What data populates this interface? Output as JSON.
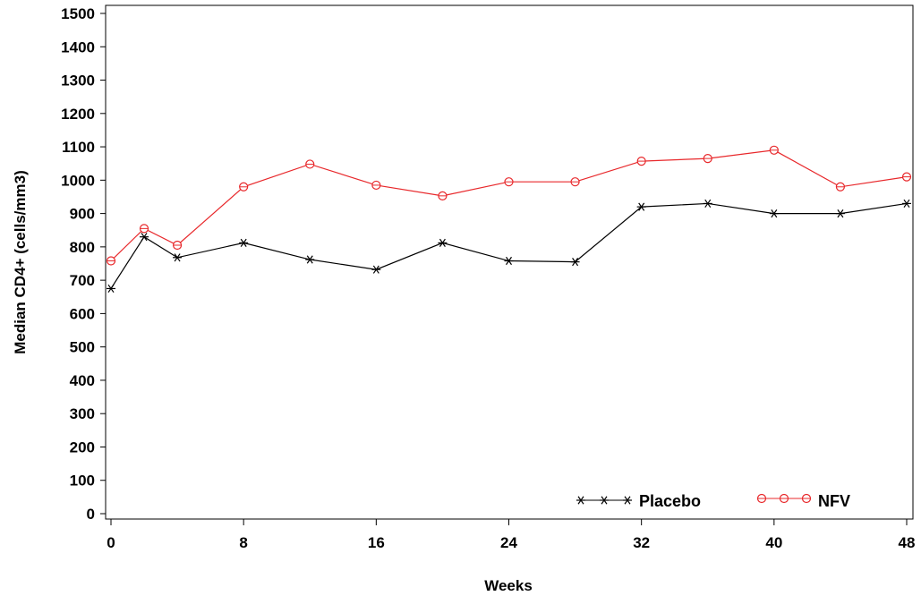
{
  "chart_data": {
    "type": "line",
    "xlabel": "Weeks",
    "ylabel": "Median CD4+  (cells/mm3)",
    "xlim": [
      0,
      48
    ],
    "ylim": [
      0,
      1500
    ],
    "x_ticks": [
      "0",
      "8",
      "16",
      "24",
      "32",
      "40",
      "48"
    ],
    "x_tick_values": [
      0,
      8,
      16,
      24,
      32,
      40,
      48
    ],
    "y_ticks": [
      "0",
      "100",
      "200",
      "300",
      "400",
      "500",
      "600",
      "700",
      "800",
      "900",
      "1000",
      "1100",
      "1200",
      "1300",
      "1400",
      "1500"
    ],
    "y_tick_values": [
      0,
      100,
      200,
      300,
      400,
      500,
      600,
      700,
      800,
      900,
      1000,
      1100,
      1200,
      1300,
      1400,
      1500
    ],
    "grid": false,
    "legend_position": "bottom-right",
    "series": [
      {
        "name": "Placebo",
        "color": "#000000",
        "marker": "asterisk",
        "x": [
          0,
          2,
          4,
          8,
          12,
          16,
          20,
          24,
          28,
          32,
          36,
          40,
          44,
          48
        ],
        "y": [
          675,
          830,
          768,
          812,
          762,
          732,
          812,
          758,
          755,
          920,
          930,
          900,
          900,
          930
        ]
      },
      {
        "name": "NFV",
        "color": "#e8282b",
        "marker": "circle",
        "x": [
          0,
          2,
          4,
          8,
          12,
          16,
          20,
          24,
          28,
          32,
          36,
          40,
          44,
          48
        ],
        "y": [
          758,
          855,
          805,
          980,
          1048,
          985,
          953,
          995,
          995,
          1057,
          1065,
          1090,
          980,
          1010
        ]
      }
    ]
  }
}
